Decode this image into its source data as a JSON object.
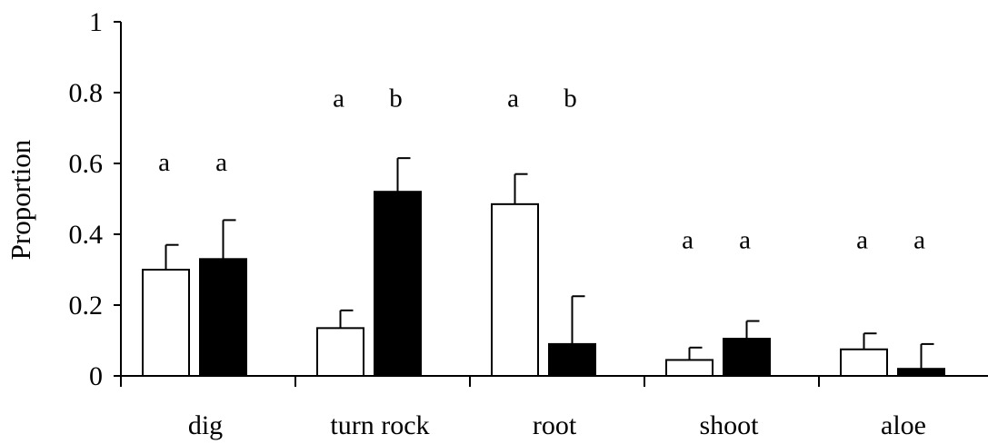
{
  "chart_data": {
    "type": "bar",
    "ylabel": "Proportion",
    "ylim": [
      0,
      1
    ],
    "yticks": [
      "0",
      "0.2",
      "0.4",
      "0.6",
      "0.8",
      "1"
    ],
    "categories": [
      "dig",
      "turn rock",
      "root",
      "shoot",
      "aloe"
    ],
    "series": [
      {
        "fill": "#ffffff",
        "values": [
          0.3,
          0.135,
          0.485,
          0.045,
          0.075
        ],
        "errors": [
          0.07,
          0.05,
          0.085,
          0.035,
          0.045
        ],
        "annotations": [
          "a",
          "a",
          "a",
          "a",
          "a"
        ]
      },
      {
        "fill": "#000000",
        "values": [
          0.33,
          0.52,
          0.09,
          0.105,
          0.02
        ],
        "errors": [
          0.11,
          0.095,
          0.135,
          0.05,
          0.07
        ],
        "annotations": [
          "a",
          "b",
          "b",
          "a",
          "a"
        ]
      }
    ],
    "annotation_level": [
      0.58,
      0.76,
      0.76,
      0.36,
      0.36
    ],
    "legend": "none",
    "grid": false
  }
}
